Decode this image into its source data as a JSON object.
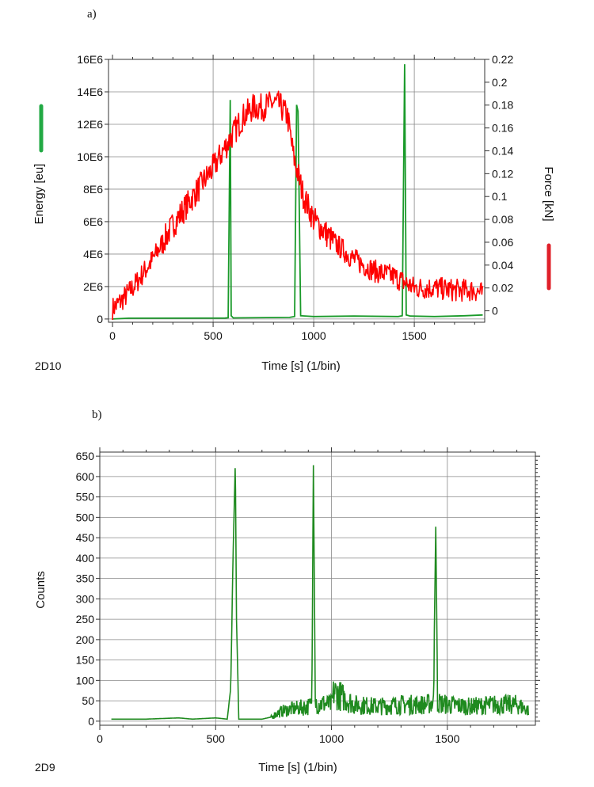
{
  "colors": {
    "energy": "#1a9a2a",
    "force": "#ff0000",
    "counts": "#1f8a1f",
    "grid": "#8a8a8a",
    "axis": "#333333"
  },
  "chart_data": [
    {
      "panel_label": "a)",
      "id_label": "2D10",
      "type": "line",
      "xlabel": "Time [s] (1/bin)",
      "ylabel_left": "Energy [eu]",
      "ylabel_right": "Force [kN]",
      "xlim": [
        -20,
        1850
      ],
      "ylim_left": [
        -200000,
        16000000
      ],
      "ylim_right": [
        -0.01,
        0.22
      ],
      "x_ticks": [
        0,
        500,
        1000,
        1500
      ],
      "x_tick_labels": [
        "0",
        "500",
        "1000",
        "1500"
      ],
      "y_left_ticks": [
        0,
        2000000,
        4000000,
        6000000,
        8000000,
        10000000,
        12000000,
        14000000,
        16000000
      ],
      "y_left_tick_labels": [
        "0",
        "2E6",
        "4E6",
        "6E6",
        "8E6",
        "10E6",
        "12E6",
        "14E6",
        "16E6"
      ],
      "y_right_ticks": [
        0,
        0.02,
        0.04,
        0.06,
        0.08,
        0.1,
        0.12,
        0.14,
        0.16,
        0.18,
        0.2,
        0.22
      ],
      "y_right_tick_labels": [
        "0",
        "0.02",
        "0.04",
        "0.06",
        "0.08",
        "0.1",
        "0.12",
        "0.14",
        "0.16",
        "0.18",
        "0.2",
        "0.22"
      ],
      "series": [
        {
          "name": "Energy",
          "axis": "left",
          "color": "#1a9a2a",
          "x": [
            0,
            80,
            560,
            575,
            585,
            590,
            600,
            880,
            905,
            915,
            922,
            935,
            1000,
            1200,
            1420,
            1440,
            1452,
            1460,
            1480,
            1600,
            1750,
            1840
          ],
          "y": [
            0,
            50000,
            60000,
            80000,
            13500000,
            200000,
            70000,
            100000,
            150000,
            13200000,
            12800000,
            200000,
            150000,
            180000,
            150000,
            200000,
            15700000,
            250000,
            180000,
            150000,
            200000,
            250000
          ]
        },
        {
          "name": "Force",
          "axis": "right",
          "color": "#ff0000",
          "x": [
            0,
            20,
            50,
            100,
            200,
            300,
            400,
            500,
            550,
            600,
            650,
            700,
            750,
            800,
            830,
            870,
            900,
            950,
            1000,
            1100,
            1200,
            1300,
            1400,
            1450,
            1500,
            1600,
            1700,
            1800,
            1840
          ],
          "y": [
            0.002,
            0.005,
            0.01,
            0.02,
            0.045,
            0.075,
            0.1,
            0.125,
            0.14,
            0.155,
            0.17,
            0.178,
            0.178,
            0.182,
            0.18,
            0.17,
            0.135,
            0.1,
            0.08,
            0.06,
            0.045,
            0.035,
            0.03,
            0.025,
            0.02,
            0.02,
            0.018,
            0.018,
            0.015
          ]
        }
      ]
    },
    {
      "panel_label": "b)",
      "id_label": "2D9",
      "type": "line",
      "xlabel": "Time [s] (1/bin)",
      "ylabel": "Counts",
      "xlim": [
        0,
        1880
      ],
      "ylim": [
        -10,
        660
      ],
      "x_ticks": [
        0,
        500,
        1000,
        1500
      ],
      "x_tick_labels": [
        "0",
        "500",
        "1000",
        "1500"
      ],
      "y_ticks": [
        0,
        50,
        100,
        150,
        200,
        250,
        300,
        350,
        400,
        450,
        500,
        550,
        600,
        650
      ],
      "y_tick_labels": [
        "0",
        "50",
        "100",
        "150",
        "200",
        "250",
        "300",
        "350",
        "400",
        "450",
        "500",
        "550",
        "600",
        "650"
      ],
      "series": [
        {
          "name": "Counts",
          "color": "#1f8a1f",
          "x": [
            50,
            200,
            340,
            400,
            500,
            550,
            565,
            575,
            585,
            590,
            600,
            700,
            740,
            760,
            800,
            900,
            915,
            922,
            930,
            1000,
            1010,
            1100,
            1200,
            1300,
            1400,
            1440,
            1450,
            1458,
            1500,
            1600,
            1700,
            1800,
            1850
          ],
          "y": [
            5,
            5,
            8,
            5,
            8,
            5,
            80,
            400,
            645,
            250,
            5,
            5,
            10,
            20,
            30,
            40,
            45,
            628,
            50,
            45,
            80,
            45,
            40,
            45,
            45,
            50,
            477,
            50,
            45,
            40,
            45,
            45,
            30
          ]
        }
      ]
    }
  ]
}
